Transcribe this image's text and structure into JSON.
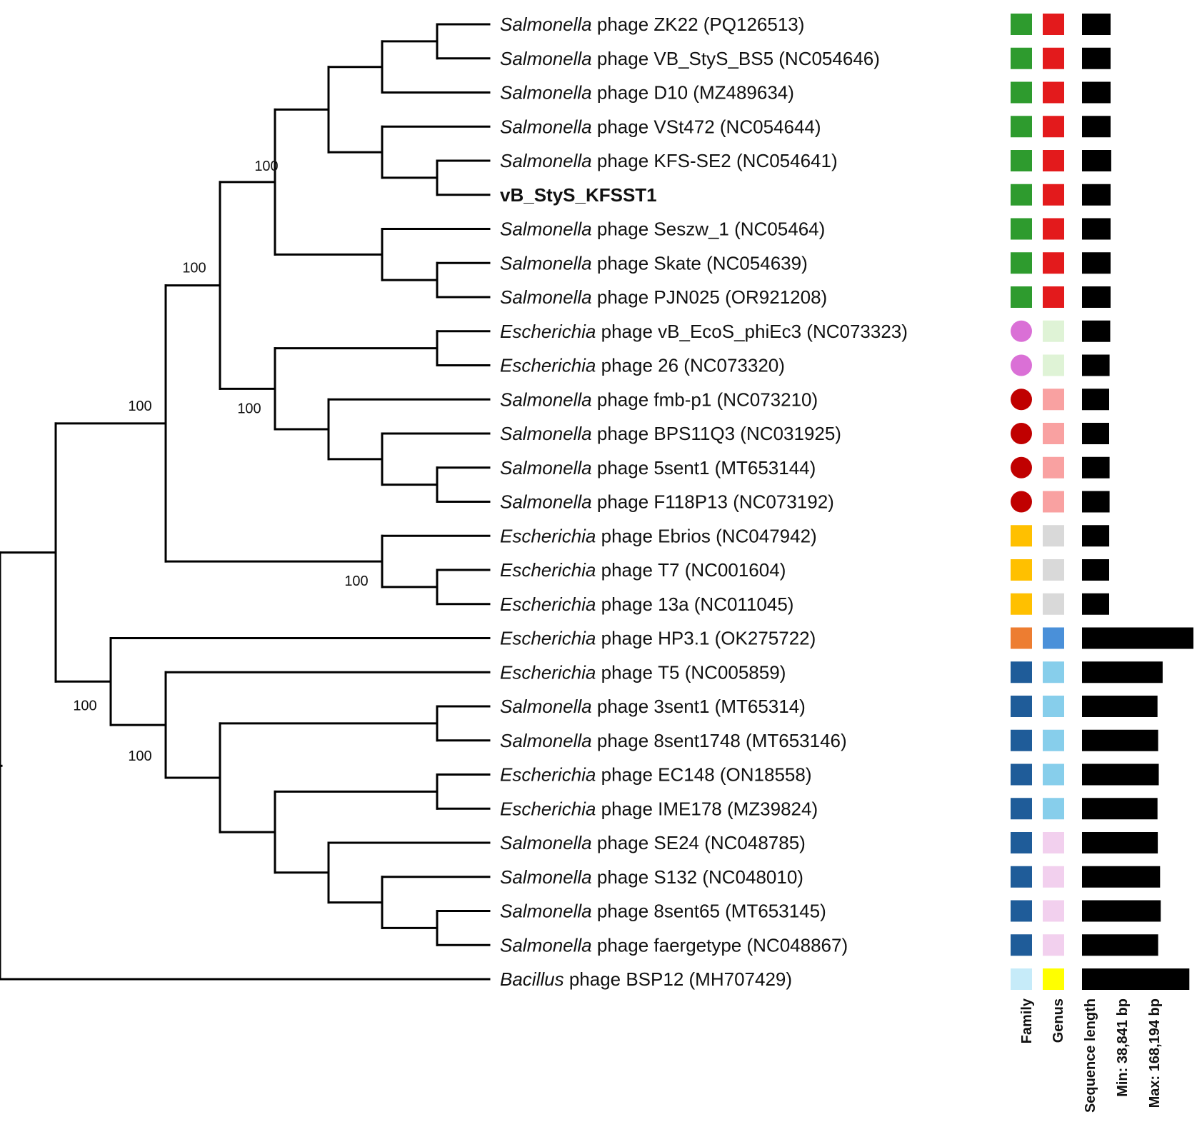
{
  "figure": {
    "type": "phylogenetic-tree",
    "support_values": [
      "100",
      "100",
      "100",
      "100",
      "100",
      "100",
      "100"
    ],
    "legend": {
      "family": "Family",
      "genus": "Genus",
      "sequence_length": "Sequence length",
      "min": "Min: 38,841 bp",
      "max": "Max: 168,194 bp"
    },
    "length_range_bp": [
      38841,
      168194
    ],
    "taxa": [
      {
        "genus_name": "Salmonella",
        "rest": " phage ZK22 (PQ126513)",
        "family_shape": "square",
        "family_color": "#2e9b2e",
        "genus_color": "#e31a1c",
        "length_bp": 41000
      },
      {
        "genus_name": "Salmonella",
        "rest": " phage VB_StyS_BS5 (NC054646)",
        "family_shape": "square",
        "family_color": "#2e9b2e",
        "genus_color": "#e31a1c",
        "length_bp": 41000
      },
      {
        "genus_name": "Salmonella",
        "rest": " phage D10 (MZ489634)",
        "family_shape": "square",
        "family_color": "#2e9b2e",
        "genus_color": "#e31a1c",
        "length_bp": 41000
      },
      {
        "genus_name": "Salmonella",
        "rest": " phage VSt472 (NC054644)",
        "family_shape": "square",
        "family_color": "#2e9b2e",
        "genus_color": "#e31a1c",
        "length_bp": 41000
      },
      {
        "genus_name": "Salmonella",
        "rest": " phage KFS-SE2 (NC054641)",
        "family_shape": "square",
        "family_color": "#2e9b2e",
        "genus_color": "#e31a1c",
        "length_bp": 42000
      },
      {
        "genus_name": "",
        "rest": "vB_StyS_KFSST1",
        "bold": true,
        "family_shape": "square",
        "family_color": "#2e9b2e",
        "genus_color": "#e31a1c",
        "length_bp": 41000
      },
      {
        "genus_name": "Salmonella",
        "rest": " phage Seszw_1 (NC05464)",
        "family_shape": "square",
        "family_color": "#2e9b2e",
        "genus_color": "#e31a1c",
        "length_bp": 41000
      },
      {
        "genus_name": "Salmonella",
        "rest": " phage Skate (NC054639)",
        "family_shape": "square",
        "family_color": "#2e9b2e",
        "genus_color": "#e31a1c",
        "length_bp": 41000
      },
      {
        "genus_name": "Salmonella",
        "rest": " phage PJN025 (OR921208)",
        "family_shape": "square",
        "family_color": "#2e9b2e",
        "genus_color": "#e31a1c",
        "length_bp": 41000
      },
      {
        "genus_name": "Escherichia",
        "rest": " phage vB_EcoS_phiEc3 (NC073323)",
        "family_shape": "circle",
        "family_color": "#da70d6",
        "genus_color": "#dff3d6",
        "length_bp": 40500
      },
      {
        "genus_name": "Escherichia",
        "rest": " phage 26 (NC073320)",
        "family_shape": "circle",
        "family_color": "#da70d6",
        "genus_color": "#dff3d6",
        "length_bp": 39500
      },
      {
        "genus_name": "Salmonella",
        "rest": " phage fmb-p1 (NC073210)",
        "family_shape": "circle",
        "family_color": "#c00000",
        "genus_color": "#f9a1a1",
        "length_bp": 38841
      },
      {
        "genus_name": "Salmonella",
        "rest": " phage BPS11Q3 (NC031925)",
        "family_shape": "circle",
        "family_color": "#c00000",
        "genus_color": "#f9a1a1",
        "length_bp": 38841
      },
      {
        "genus_name": "Salmonella",
        "rest": " phage 5sent1 (MT653144)",
        "family_shape": "circle",
        "family_color": "#c00000",
        "genus_color": "#f9a1a1",
        "length_bp": 39500
      },
      {
        "genus_name": "Salmonella",
        "rest": " phage F118P13 (NC073192)",
        "family_shape": "circle",
        "family_color": "#c00000",
        "genus_color": "#f9a1a1",
        "length_bp": 39500
      },
      {
        "genus_name": "Escherichia",
        "rest": " phage Ebrios (NC047942)",
        "family_shape": "square",
        "family_color": "#ffc000",
        "genus_color": "#d9d9d9",
        "length_bp": 39000
      },
      {
        "genus_name": "Escherichia",
        "rest": " phage T7 (NC001604)",
        "family_shape": "square",
        "family_color": "#ffc000",
        "genus_color": "#d9d9d9",
        "length_bp": 38841
      },
      {
        "genus_name": "Escherichia",
        "rest": " phage 13a (NC011045)",
        "family_shape": "square",
        "family_color": "#ffc000",
        "genus_color": "#d9d9d9",
        "length_bp": 38841
      },
      {
        "genus_name": "Escherichia",
        "rest": " phage HP3.1 (OK275722)",
        "family_shape": "square",
        "family_color": "#ed7d31",
        "genus_color": "#4a90d9",
        "length_bp": 168194
      },
      {
        "genus_name": "Escherichia",
        "rest": " phage T5 (NC005859)",
        "family_shape": "square",
        "family_color": "#1f5c99",
        "genus_color": "#87ceeb",
        "length_bp": 121000
      },
      {
        "genus_name": "Salmonella",
        "rest": " phage 3sent1 (MT65314)",
        "family_shape": "square",
        "family_color": "#1f5c99",
        "genus_color": "#87ceeb",
        "length_bp": 113000
      },
      {
        "genus_name": "Salmonella",
        "rest": " phage 8sent1748 (MT653146)",
        "family_shape": "square",
        "family_color": "#1f5c99",
        "genus_color": "#87ceeb",
        "length_bp": 114000
      },
      {
        "genus_name": "Escherichia",
        "rest": " phage EC148 (ON18558)",
        "family_shape": "square",
        "family_color": "#1f5c99",
        "genus_color": "#87ceeb",
        "length_bp": 115000
      },
      {
        "genus_name": "Escherichia",
        "rest": " phage IME178 (MZ39824)",
        "family_shape": "square",
        "family_color": "#1f5c99",
        "genus_color": "#87ceeb",
        "length_bp": 113000
      },
      {
        "genus_name": "Salmonella",
        "rest": " phage SE24 (NC048785)",
        "family_shape": "square",
        "family_color": "#1f5c99",
        "genus_color": "#f2d0ee",
        "length_bp": 113500
      },
      {
        "genus_name": "Salmonella",
        "rest": " phage S132 (NC048010)",
        "family_shape": "square",
        "family_color": "#1f5c99",
        "genus_color": "#f2d0ee",
        "length_bp": 117000
      },
      {
        "genus_name": "Salmonella",
        "rest": " phage 8sent65 (MT653145)",
        "family_shape": "square",
        "family_color": "#1f5c99",
        "genus_color": "#f2d0ee",
        "length_bp": 118000
      },
      {
        "genus_name": "Salmonella",
        "rest": " phage faergetype (NC048867)",
        "family_shape": "square",
        "family_color": "#1f5c99",
        "genus_color": "#f2d0ee",
        "length_bp": 114000
      },
      {
        "genus_name": "Bacillus",
        "rest": " phage BSP12 (MH707429)",
        "family_shape": "square",
        "family_color": "#c6ebf9",
        "genus_color": "#ffff00",
        "length_bp": 162000
      }
    ]
  }
}
